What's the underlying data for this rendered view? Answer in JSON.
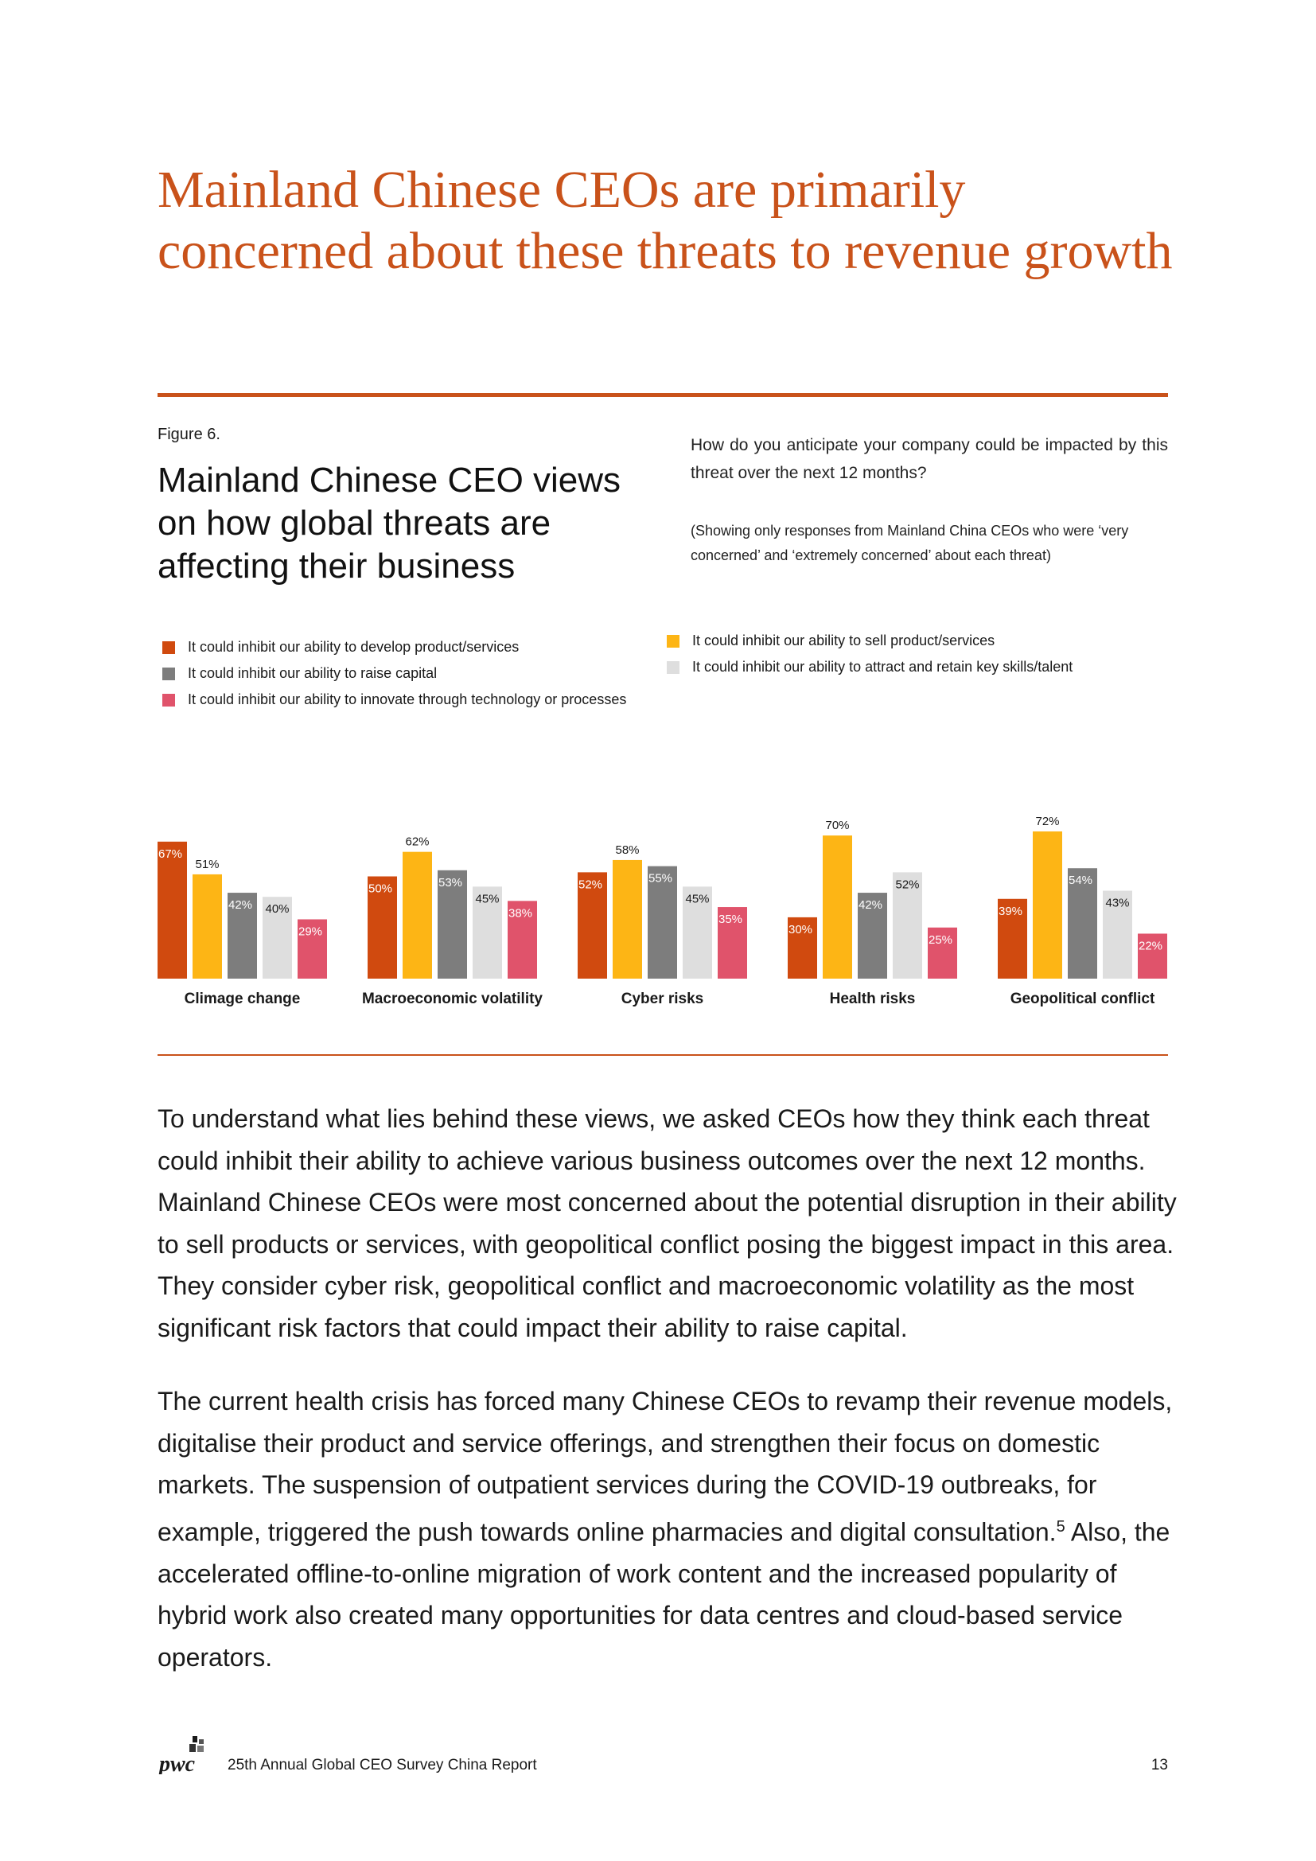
{
  "title": "Mainland Chinese CEOs are primarily concerned about these threats to revenue growth",
  "figure": {
    "label": "Figure 6.",
    "title": "Mainland Chinese CEO views on how global threats are affecting their business",
    "question": "How do you anticipate your company could be impacted by this threat over the next 12 months?",
    "note": "(Showing only responses from Mainland China CEOs who were ‘very concerned’ and ‘extremely concerned’ about each threat)"
  },
  "chart_data": {
    "type": "bar",
    "categories": [
      "Climage change",
      "Macroeconomic volatility",
      "Cyber risks",
      "Health risks",
      "Geopolitical conflict"
    ],
    "series": [
      {
        "name": "It could inhibit our ability to develop product/services",
        "color": "#d04a0f",
        "values": [
          67,
          50,
          52,
          30,
          39
        ]
      },
      {
        "name": "It could inhibit our ability to sell product/services",
        "color": "#fdb515",
        "values": [
          51,
          62,
          58,
          70,
          72
        ]
      },
      {
        "name": "It could inhibit our ability to raise capital",
        "color": "#7d7d7d",
        "values": [
          42,
          53,
          55,
          42,
          54
        ]
      },
      {
        "name": "It could inhibit our ability to attract and retain key skills/talent",
        "color": "#dedede",
        "values": [
          40,
          45,
          45,
          52,
          43
        ]
      },
      {
        "name": "It could inhibit our ability to innovate through technology or processes",
        "color": "#e0536b",
        "values": [
          29,
          38,
          35,
          25,
          22
        ]
      }
    ],
    "value_suffix": "%",
    "ylim": [
      0,
      80
    ],
    "grid": false,
    "legend_position": "top"
  },
  "body": {
    "p1": "To understand what lies behind these views, we asked CEOs how they think each threat could inhibit their ability to achieve various business outcomes over the next 12 months. Mainland Chinese CEOs were most concerned about the potential disruption in their ability to sell products or services, with geopolitical conflict posing the biggest impact in this area. They consider cyber risk, geopolitical conflict and macroeconomic volatility as the most significant risk factors that could impact their ability to raise capital.",
    "p2_before": "The current health crisis has forced many Chinese CEOs to revamp their revenue models, digitalise their product and service offerings, and strengthen their focus on domestic markets. The suspension of outpatient services during the COVID-19 outbreaks, for example, triggered the push towards online pharmacies and digital consultation.",
    "p2_footnote": "5",
    "p2_after": " Also, the accelerated offline-to-online migration of work content and the increased popularity of hybrid work also created many opportunities for data centres and cloud-based service operators."
  },
  "footer": {
    "logo_text": "pwc",
    "report_title": "25th Annual Global CEO Survey China Report",
    "page_number": "13"
  }
}
